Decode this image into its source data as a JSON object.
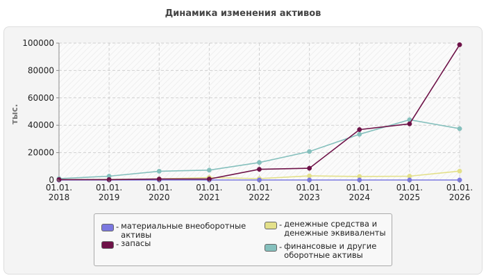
{
  "chart_data": {
    "type": "line",
    "title": "Динамика изменения активов",
    "ylabel": "тыс.",
    "xlabel": "",
    "categories": [
      "01.01. 2018",
      "01.01. 2019",
      "01.01. 2020",
      "01.01. 2021",
      "01.01. 2022",
      "01.01. 2023",
      "01.01. 2024",
      "01.01. 2025",
      "01.01. 2026"
    ],
    "ylim": [
      0,
      100000
    ],
    "yticks": [
      "0",
      "20000",
      "40000",
      "60000",
      "80000",
      "100000"
    ],
    "grid": true,
    "legend_position": "bottom",
    "series": [
      {
        "name": "материальные внеоборотные активы",
        "color": "#7b78e0",
        "values": [
          0,
          0,
          0,
          0,
          0,
          0,
          0,
          0,
          0
        ]
      },
      {
        "name": "запасы",
        "color": "#6e1248",
        "values": [
          300,
          300,
          700,
          700,
          7800,
          8600,
          36800,
          41000,
          98800
        ]
      },
      {
        "name": "денежные средства и денежные эквиваленты",
        "color": "#e3e08a",
        "values": [
          300,
          400,
          800,
          1800,
          1000,
          3000,
          2600,
          2800,
          6500
        ]
      },
      {
        "name": "финансовые и другие оборотные активы",
        "color": "#85c0bd",
        "values": [
          1000,
          2800,
          6400,
          7200,
          12800,
          20800,
          33400,
          44000,
          37500
        ]
      }
    ]
  }
}
